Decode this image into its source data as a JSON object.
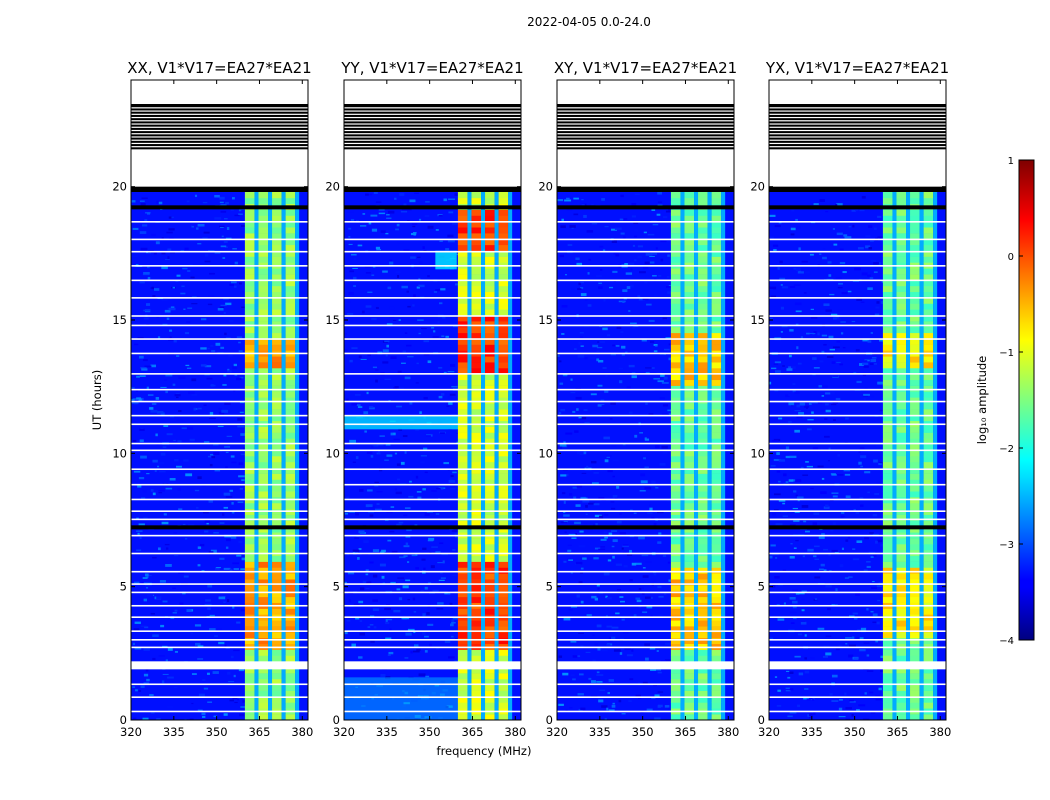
{
  "chart_data": {
    "type": "heatmap",
    "suptitle": "2022-04-05 0.0-24.0",
    "xlabel": "frequency (MHz)",
    "ylabel": "UT (hours)",
    "xlim": [
      320,
      382
    ],
    "ylim": [
      0,
      24
    ],
    "xticks": [
      320,
      335,
      350,
      365,
      380
    ],
    "yticks": [
      0,
      5,
      10,
      15,
      20
    ],
    "colorbar": {
      "label": "log₁₀ amplitude",
      "range": [
        -4,
        1
      ],
      "ticks": [
        -4,
        -3,
        -2,
        -1,
        0,
        1
      ],
      "tick_labels": [
        "−4",
        "−3",
        "−2",
        "−1",
        "0",
        "1"
      ],
      "colormap": "jet"
    },
    "background_level": -3.3,
    "bright_band_mhz": [
      359.5,
      378.5
    ],
    "flagged_hours": {
      "blank": [
        [
          20.2,
          21.4
        ],
        [
          23.1,
          24.0
        ]
      ],
      "black_stripes_22_23": 14,
      "black": [
        [
          19.8,
          20.0
        ],
        [
          19.15,
          19.3
        ],
        [
          7.15,
          7.3
        ]
      ]
    },
    "panels": [
      {
        "title": "XX, V1*V17=EA27*EA21",
        "band_level": -1.4,
        "hot_hours": [
          [
            13.1,
            14.3
          ],
          [
            2.5,
            5.8
          ]
        ],
        "hot_level": -0.4,
        "rfi_350mhz": false
      },
      {
        "title": "YY, V1*V17=EA27*EA21",
        "band_level": -1.1,
        "hot_hours": [
          [
            12.8,
            15.0
          ],
          [
            17.5,
            19.0
          ],
          [
            2.5,
            5.8
          ]
        ],
        "hot_level": 0.1,
        "rfi_350mhz": true
      },
      {
        "title": "XY, V1*V17=EA27*EA21",
        "band_level": -1.6,
        "hot_hours": [
          [
            12.5,
            14.5
          ],
          [
            2.5,
            5.5
          ]
        ],
        "hot_level": -0.6,
        "rfi_350mhz": false
      },
      {
        "title": "YX, V1*V17=EA27*EA21",
        "band_level": -1.6,
        "hot_hours": [
          [
            13.0,
            14.5
          ],
          [
            3.0,
            5.5
          ]
        ],
        "hot_level": -0.8,
        "rfi_350mhz": false
      }
    ]
  }
}
